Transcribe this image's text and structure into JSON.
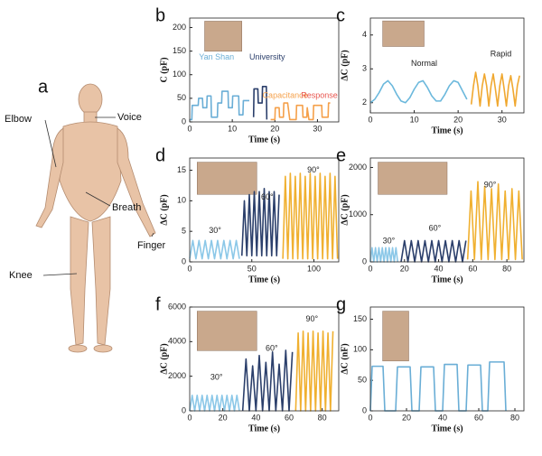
{
  "panel_a": {
    "label": "a",
    "annotations": [
      "Elbow",
      "Voice",
      "Breath",
      "Finger",
      "Knee"
    ]
  },
  "chart_data": [
    {
      "type": "line",
      "panel": "b",
      "ylabel": "C (pF)",
      "xlabel": "Time (s)",
      "xlim": [
        0,
        35
      ],
      "xticks": [
        0,
        10,
        20,
        30
      ],
      "ylim": [
        0,
        220
      ],
      "yticks": [
        0,
        50,
        100,
        150,
        200
      ],
      "annotations": [
        {
          "text": "Yan Shan",
          "color": "#6aaed6"
        },
        {
          "text": "University",
          "color": "#2b3f6b"
        },
        {
          "text": "Capacitance",
          "color": "#f5a04a"
        },
        {
          "text": "Response",
          "color": "#e8554e"
        }
      ],
      "series": [
        {
          "color": "#6aaed6",
          "x": [
            0,
            0.5,
            0.6,
            2,
            2.1,
            3,
            3.1,
            4,
            4.1,
            5,
            5.1,
            6.5,
            6.6,
            7.5,
            7.6,
            9,
            9.1,
            10,
            10.1,
            11.5,
            11.6,
            12.5,
            12.6,
            14
          ],
          "values": [
            5,
            5,
            35,
            35,
            50,
            50,
            30,
            30,
            55,
            55,
            10,
            10,
            40,
            40,
            65,
            65,
            30,
            30,
            55,
            55,
            15,
            15,
            45,
            45
          ]
        },
        {
          "color": "#2b3f6b",
          "x": [
            15,
            15.1,
            16,
            16.1,
            17,
            17.1,
            18,
            18.1
          ],
          "values": [
            10,
            70,
            70,
            40,
            40,
            75,
            75,
            5
          ]
        },
        {
          "color": "#f5a04a",
          "x": [
            19,
            20,
            20.1,
            21,
            21.1,
            22,
            22.1,
            23,
            23.5,
            24,
            25,
            25.1,
            26.5,
            26.6,
            27.5,
            27.6,
            28,
            29,
            29.1,
            31,
            31.1,
            32.5,
            32.6,
            33
          ],
          "values": [
            5,
            5,
            30,
            30,
            10,
            10,
            40,
            40,
            5,
            5,
            5,
            35,
            35,
            10,
            10,
            30,
            5,
            5,
            35,
            35,
            10,
            10,
            40,
            40
          ]
        }
      ]
    },
    {
      "type": "line",
      "panel": "c",
      "ylabel": "ΔC (pF)",
      "xlabel": "Time (s)",
      "xlim": [
        0,
        35
      ],
      "xticks": [
        0,
        10,
        20,
        30
      ],
      "ylim": [
        1.7,
        4.5
      ],
      "yticks": [
        2,
        3,
        4
      ],
      "annotations": [
        {
          "text": "Normal",
          "color": "#222222"
        },
        {
          "text": "Rapid",
          "color": "#222222"
        }
      ],
      "series": [
        {
          "color": "#6bb8dc",
          "x": [
            0,
            1,
            2,
            3,
            4,
            5,
            6,
            7,
            8,
            9,
            10,
            11,
            12,
            13,
            14,
            15,
            16,
            17,
            18,
            19,
            20,
            21,
            22
          ],
          "values": [
            2.0,
            2.1,
            2.3,
            2.55,
            2.65,
            2.5,
            2.25,
            2.05,
            2.0,
            2.15,
            2.4,
            2.6,
            2.65,
            2.45,
            2.2,
            2.05,
            2.05,
            2.25,
            2.5,
            2.65,
            2.6,
            2.35,
            2.1
          ]
        },
        {
          "color": "#f0a830",
          "x": [
            23,
            23.5,
            24,
            24.5,
            25,
            25.5,
            26,
            26.5,
            27,
            27.5,
            28,
            28.5,
            29,
            29.5,
            30,
            30.5,
            31,
            31.5,
            32,
            32.5,
            33,
            33.5,
            34
          ],
          "values": [
            1.95,
            2.5,
            2.9,
            2.5,
            1.9,
            2.5,
            2.85,
            2.5,
            1.9,
            2.5,
            2.85,
            2.4,
            1.9,
            2.5,
            2.85,
            2.4,
            1.9,
            2.5,
            2.8,
            2.4,
            1.9,
            2.5,
            2.8
          ]
        }
      ]
    },
    {
      "type": "line",
      "panel": "d",
      "ylabel": "ΔC (pF)",
      "xlabel": "Time (s)",
      "xlim": [
        0,
        120
      ],
      "xticks": [
        0,
        50,
        100
      ],
      "ylim": [
        0,
        17
      ],
      "yticks": [
        0,
        5,
        10,
        15
      ],
      "annotations": [
        {
          "text": "30°",
          "color": "#222222"
        },
        {
          "text": "60°",
          "color": "#222222"
        },
        {
          "text": "90°",
          "color": "#222222"
        }
      ],
      "series": [
        {
          "color": "#8cc8e8",
          "x": [
            0,
            2.5,
            5,
            7.5,
            10,
            12.5,
            15,
            17.5,
            20,
            22.5,
            25,
            27.5,
            30,
            32.5,
            35,
            37.5,
            40
          ],
          "values": [
            0.5,
            3.5,
            0.5,
            3.5,
            0.5,
            3.5,
            0.5,
            3.5,
            0.5,
            3.5,
            0.5,
            3.5,
            0.5,
            3.5,
            0.5,
            3.5,
            0.5
          ]
        },
        {
          "color": "#2b3f6b",
          "x": [
            42,
            44,
            46,
            48,
            50,
            52,
            54,
            56,
            58,
            60,
            62,
            64,
            66,
            68,
            70,
            72
          ],
          "values": [
            1,
            10,
            1,
            11,
            1,
            11.5,
            1,
            11.5,
            1,
            12,
            1,
            11.5,
            1,
            11.5,
            1,
            11
          ]
        },
        {
          "color": "#f0b030",
          "x": [
            75,
            77,
            79,
            81,
            83,
            85,
            87,
            89,
            91,
            93,
            95,
            97,
            99,
            101,
            103,
            105,
            107,
            109,
            111,
            113,
            115,
            117,
            119
          ],
          "values": [
            0.5,
            14,
            0.5,
            14.5,
            0.5,
            14,
            0.5,
            14.5,
            0.5,
            14,
            0.5,
            14.5,
            0.5,
            14,
            0.5,
            14.5,
            0.5,
            14,
            0.5,
            14.5,
            0.5,
            14,
            0.5
          ]
        }
      ]
    },
    {
      "type": "line",
      "panel": "e",
      "ylabel": "ΔC (pF)",
      "xlabel": "Time (s)",
      "xlim": [
        0,
        90
      ],
      "xticks": [
        0,
        20,
        40,
        60,
        80
      ],
      "ylim": [
        0,
        2200
      ],
      "yticks": [
        0,
        1000,
        2000
      ],
      "annotations": [
        {
          "text": "30°",
          "color": "#222222"
        },
        {
          "text": "60°",
          "color": "#222222"
        },
        {
          "text": "90°",
          "color": "#222222"
        }
      ],
      "series": [
        {
          "color": "#8cc8e8",
          "x": [
            0,
            1,
            2,
            3,
            4,
            5,
            6,
            7,
            8,
            9,
            10,
            11,
            12,
            13,
            14,
            15,
            16
          ],
          "values": [
            0,
            300,
            0,
            300,
            0,
            300,
            0,
            300,
            0,
            300,
            0,
            300,
            0,
            300,
            0,
            300,
            0
          ]
        },
        {
          "color": "#2b3f6b",
          "x": [
            18,
            20,
            22,
            24,
            26,
            28,
            30,
            32,
            34,
            36,
            38,
            40,
            42,
            44,
            46,
            48,
            50,
            52,
            54,
            56
          ],
          "values": [
            0,
            450,
            0,
            450,
            0,
            450,
            0,
            450,
            0,
            450,
            0,
            450,
            0,
            450,
            0,
            450,
            0,
            450,
            0,
            450
          ]
        },
        {
          "color": "#f0b030",
          "x": [
            57,
            59,
            61,
            63,
            65,
            67,
            69,
            71,
            73,
            75,
            77,
            79,
            81,
            83,
            85,
            87,
            89
          ],
          "values": [
            50,
            1500,
            50,
            1700,
            50,
            1600,
            50,
            1550,
            50,
            1650,
            50,
            1500,
            50,
            1550,
            50,
            1500,
            50
          ]
        }
      ]
    },
    {
      "type": "line",
      "panel": "f",
      "ylabel": "ΔC (pF)",
      "xlabel": "Time (s)",
      "xlim": [
        0,
        90
      ],
      "xticks": [
        0,
        20,
        40,
        60,
        80
      ],
      "ylim": [
        0,
        6000
      ],
      "yticks": [
        0,
        2000,
        4000,
        6000
      ],
      "annotations": [
        {
          "text": "30°",
          "color": "#222222"
        },
        {
          "text": "60°",
          "color": "#222222"
        },
        {
          "text": "90°",
          "color": "#222222"
        }
      ],
      "series": [
        {
          "color": "#8cc8e8",
          "x": [
            0,
            1.5,
            3,
            4.5,
            6,
            7.5,
            9,
            10.5,
            12,
            13.5,
            15,
            16.5,
            18,
            19.5,
            21,
            22.5,
            24,
            25.5,
            27,
            28.5,
            30
          ],
          "values": [
            0,
            900,
            0,
            900,
            0,
            900,
            0,
            900,
            0,
            900,
            0,
            900,
            0,
            900,
            0,
            900,
            0,
            900,
            0,
            900,
            0
          ]
        },
        {
          "color": "#2b3f6b",
          "x": [
            32,
            34,
            36,
            38,
            40,
            42,
            44,
            46,
            48,
            50,
            52,
            54,
            56,
            58,
            60,
            62
          ],
          "values": [
            0,
            3000,
            0,
            2600,
            0,
            3200,
            0,
            2800,
            0,
            3400,
            0,
            2700,
            0,
            3500,
            0,
            3400
          ]
        },
        {
          "color": "#f0b030",
          "x": [
            64,
            65.5,
            67,
            68.5,
            70,
            71.5,
            73,
            74.5,
            76,
            77.5,
            79,
            80.5,
            82,
            83.5,
            85,
            86.5
          ],
          "values": [
            0,
            4500,
            0,
            4600,
            0,
            4500,
            0,
            4600,
            0,
            4500,
            0,
            4600,
            0,
            4500,
            0,
            4600
          ]
        }
      ]
    },
    {
      "type": "line",
      "panel": "g",
      "ylabel": "ΔC (nF)",
      "xlabel": "Time (s)",
      "xlim": [
        0,
        85
      ],
      "xticks": [
        0,
        20,
        40,
        60,
        80
      ],
      "ylim": [
        0,
        170
      ],
      "yticks": [
        0,
        50,
        100,
        150
      ],
      "annotations": [],
      "series": [
        {
          "color": "#6aaed6",
          "x": [
            0,
            1,
            7,
            8,
            14,
            15,
            22,
            23,
            27,
            28,
            35,
            36,
            40,
            41,
            48,
            49,
            53,
            54,
            61,
            62,
            65,
            66,
            74,
            75
          ],
          "values": [
            0,
            73,
            73,
            0,
            0,
            72,
            72,
            0,
            0,
            72,
            72,
            0,
            0,
            76,
            76,
            0,
            0,
            75,
            75,
            0,
            0,
            80,
            80,
            0
          ]
        }
      ]
    }
  ]
}
